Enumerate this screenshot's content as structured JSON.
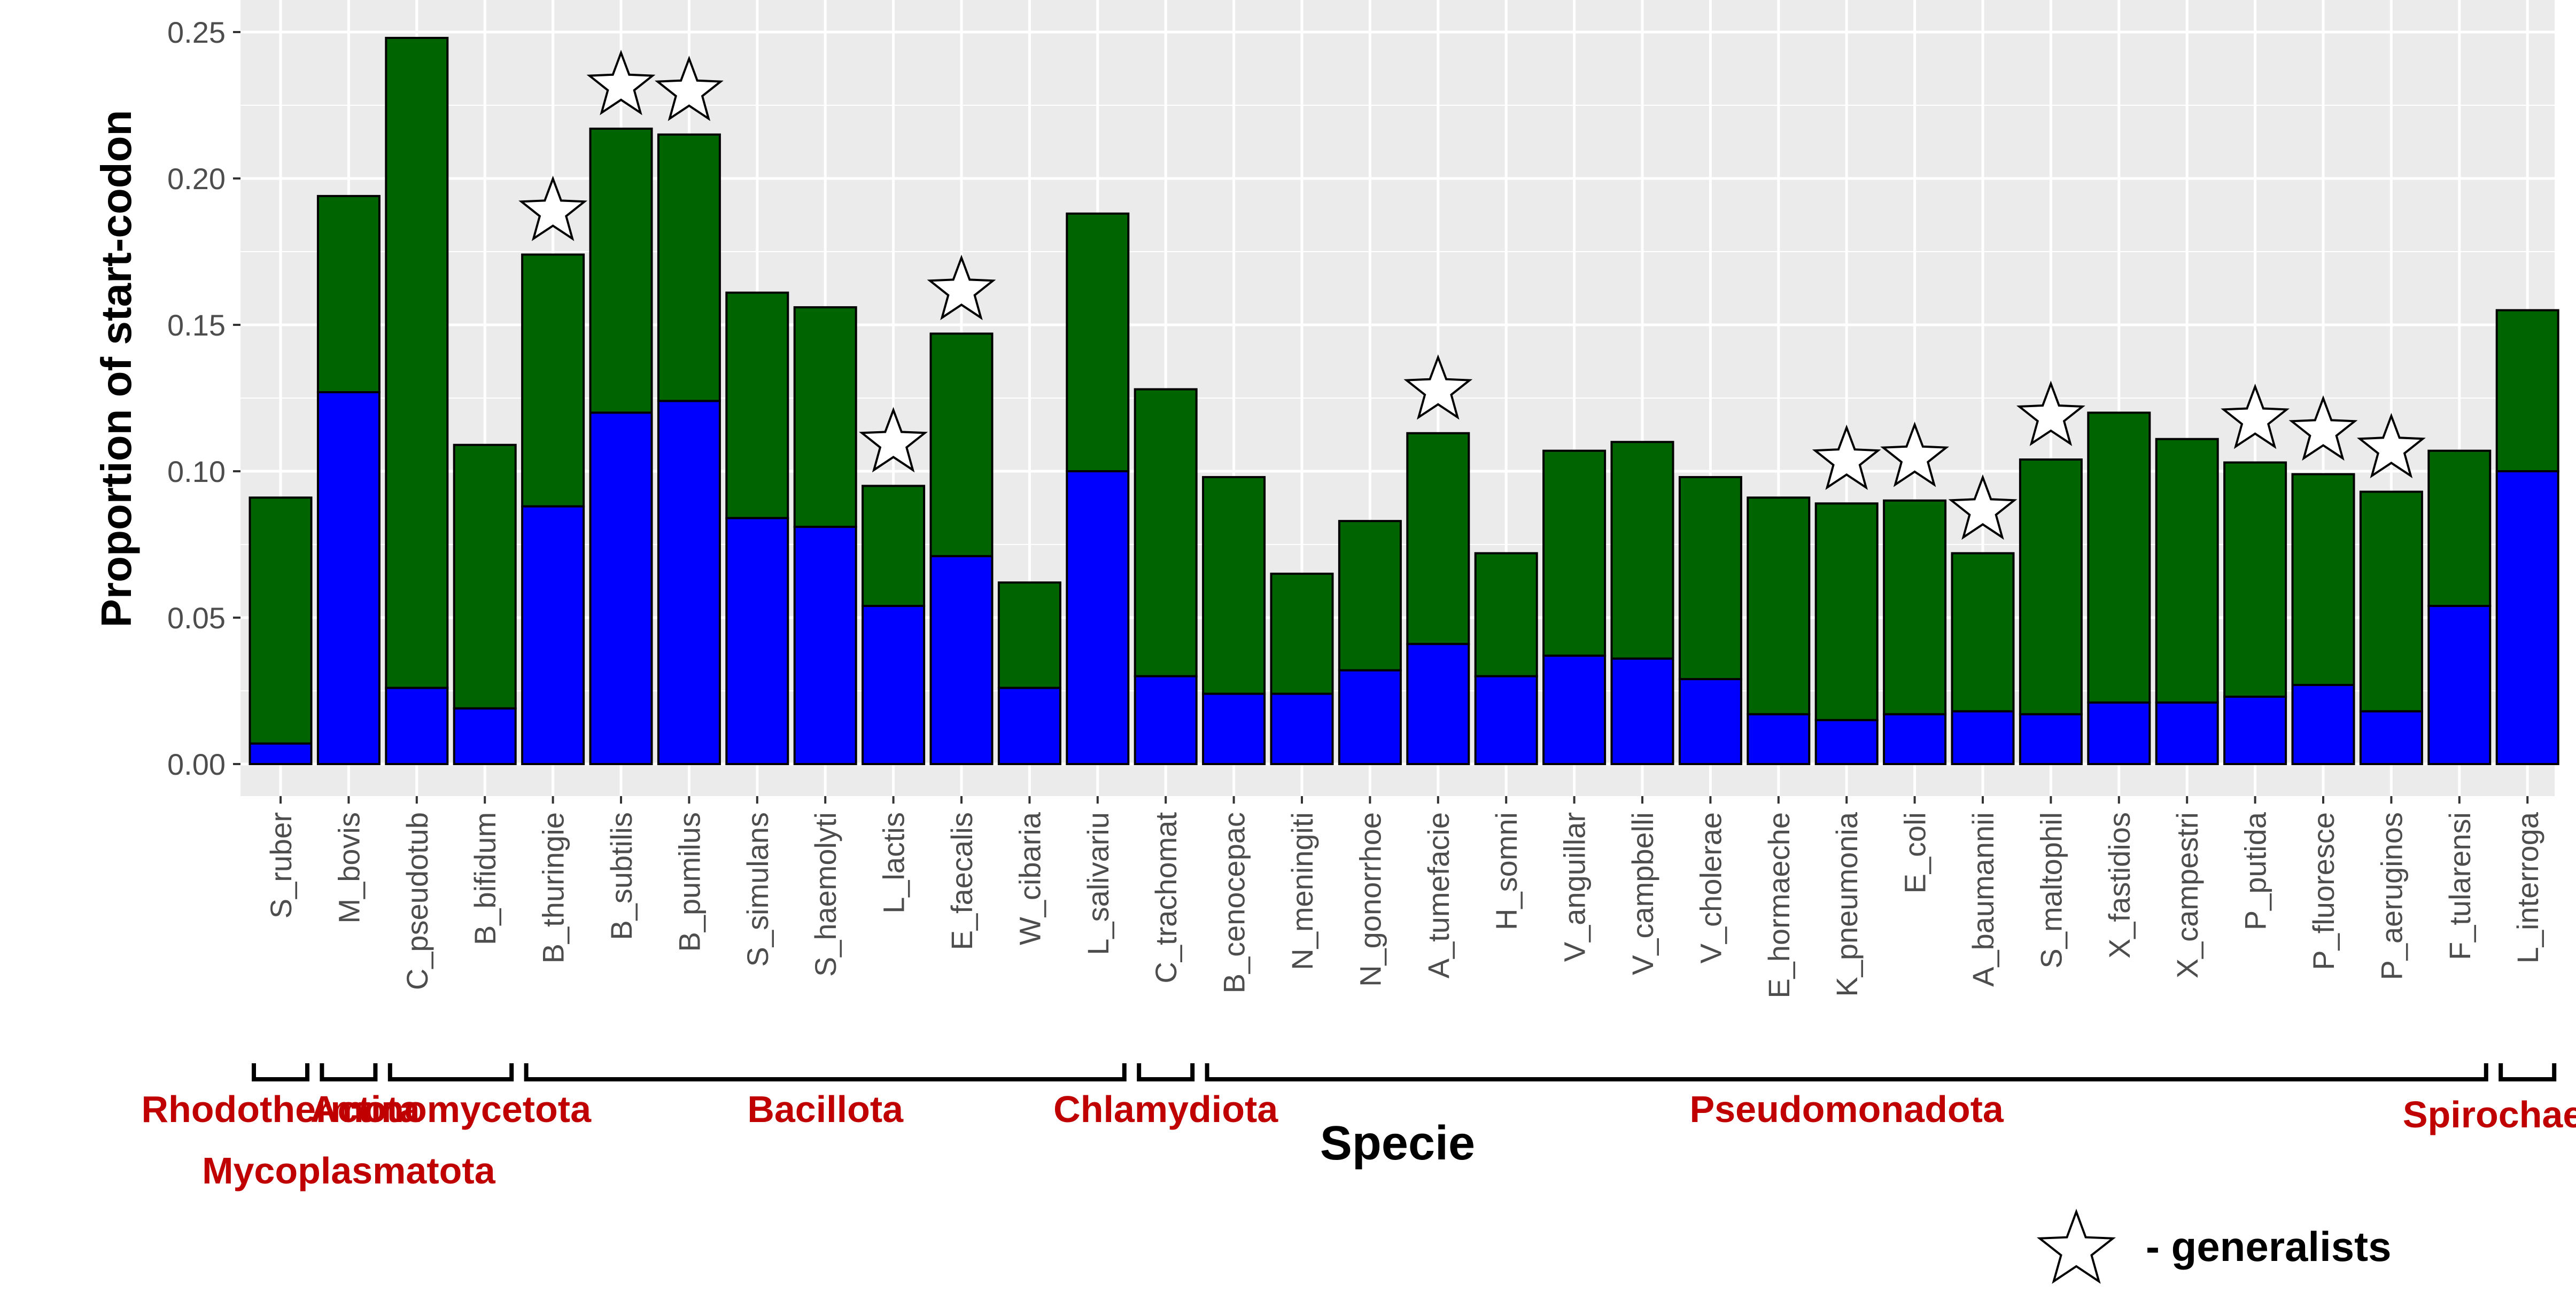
{
  "colors": {
    "panel": "#EBEBEB",
    "grid_major": "#FFFFFF",
    "bar_upper": "#006400",
    "bar_lower": "#0000FF",
    "phylum_text": "#C00000",
    "tick_text": "#4D4D4D"
  },
  "chart_data": {
    "type": "bar",
    "stacked": true,
    "ylabel": "Proportion of start-codon",
    "xlabel": "Specie",
    "ylim": [
      0,
      0.25
    ],
    "y_ticks": [
      "0.00",
      "0.05",
      "0.10",
      "0.15",
      "0.20",
      "0.25"
    ],
    "grid": true,
    "categories": [
      "S_ruber",
      "M_bovis",
      "C_pseudotub",
      "B_bifidum",
      "B_thuringie",
      "B_subtilis",
      "B_pumilus",
      "S_simulans",
      "S_haemolyti",
      "L_lactis",
      "E_faecalis",
      "W_cibaria",
      "L_salivariu",
      "C_trachomat",
      "B_cenocepac",
      "N_meningiti",
      "N_gonorrhoe",
      "A_tumefacie",
      "H_somni",
      "V_anguillar",
      "V_campbelli",
      "V_cholerae",
      "E_hormaeche",
      "K_pneumonia",
      "E_coli",
      "A_baumannii",
      "S_maltophil",
      "X_fastidios",
      "X_campestri",
      "P_putida",
      "P_fluoresce",
      "P_aeruginos",
      "F_tularensi",
      "L_interroga"
    ],
    "series": [
      {
        "color": "#0000FF",
        "values": [
          0.007,
          0.127,
          0.026,
          0.019,
          0.088,
          0.12,
          0.124,
          0.084,
          0.081,
          0.054,
          0.071,
          0.026,
          0.1,
          0.03,
          0.024,
          0.024,
          0.032,
          0.041,
          0.03,
          0.037,
          0.036,
          0.029,
          0.017,
          0.015,
          0.017,
          0.018,
          0.017,
          0.021,
          0.021,
          0.023,
          0.027,
          0.018,
          0.054,
          0.1
        ]
      },
      {
        "color": "#006400",
        "values": [
          0.084,
          0.067,
          0.222,
          0.09,
          0.086,
          0.097,
          0.091,
          0.077,
          0.075,
          0.041,
          0.076,
          0.036,
          0.088,
          0.098,
          0.074,
          0.041,
          0.051,
          0.072,
          0.042,
          0.07,
          0.074,
          0.069,
          0.074,
          0.074,
          0.073,
          0.054,
          0.087,
          0.099,
          0.09,
          0.08,
          0.072,
          0.075,
          0.053,
          0.055
        ]
      }
    ],
    "totals": [
      0.091,
      0.194,
      0.248,
      0.109,
      0.174,
      0.217,
      0.215,
      0.161,
      0.156,
      0.095,
      0.147,
      0.062,
      0.188,
      0.128,
      0.098,
      0.065,
      0.083,
      0.113,
      0.072,
      0.107,
      0.11,
      0.098,
      0.091,
      0.089,
      0.09,
      0.072,
      0.104,
      0.12,
      0.111,
      0.103,
      0.099,
      0.093,
      0.107,
      0.155
    ],
    "generalists": [
      "B_thuringie",
      "B_subtilis",
      "B_pumilus",
      "L_lactis",
      "E_faecalis",
      "A_tumefacie",
      "K_pneumonia",
      "E_coli",
      "A_baumannii",
      "S_maltophil",
      "P_putida",
      "P_fluoresce",
      "P_aeruginos"
    ],
    "phyla": [
      {
        "name": "Rhodothermota",
        "species": [
          "S_ruber"
        ]
      },
      {
        "name": "Mycoplasmatota",
        "species": [
          "M_bovis"
        ]
      },
      {
        "name": "Actinomycetota",
        "species": [
          "C_pseudotub",
          "B_bifidum"
        ]
      },
      {
        "name": "Bacillota",
        "species": [
          "B_thuringie",
          "B_subtilis",
          "B_pumilus",
          "S_simulans",
          "S_haemolyti",
          "L_lactis",
          "E_faecalis",
          "W_cibaria",
          "L_salivariu"
        ]
      },
      {
        "name": "Chlamydiota",
        "species": [
          "C_trachomat"
        ]
      },
      {
        "name": "Pseudomonadota",
        "species": [
          "B_cenocepac",
          "N_meningiti",
          "N_gonorrhoe",
          "A_tumefacie",
          "H_somni",
          "V_anguillar",
          "V_campbelli",
          "V_cholerae",
          "E_hormaeche",
          "K_pneumonia",
          "E_coli",
          "A_baumannii",
          "S_maltophil",
          "X_fastidios",
          "X_campestri",
          "P_putida",
          "P_fluoresce",
          "P_aeruginos",
          "F_tularensi"
        ]
      },
      {
        "name": "Spirochaetota",
        "species": [
          "L_interroga"
        ]
      }
    ],
    "legend": {
      "icon": "star-icon",
      "text": "- generalists"
    }
  }
}
